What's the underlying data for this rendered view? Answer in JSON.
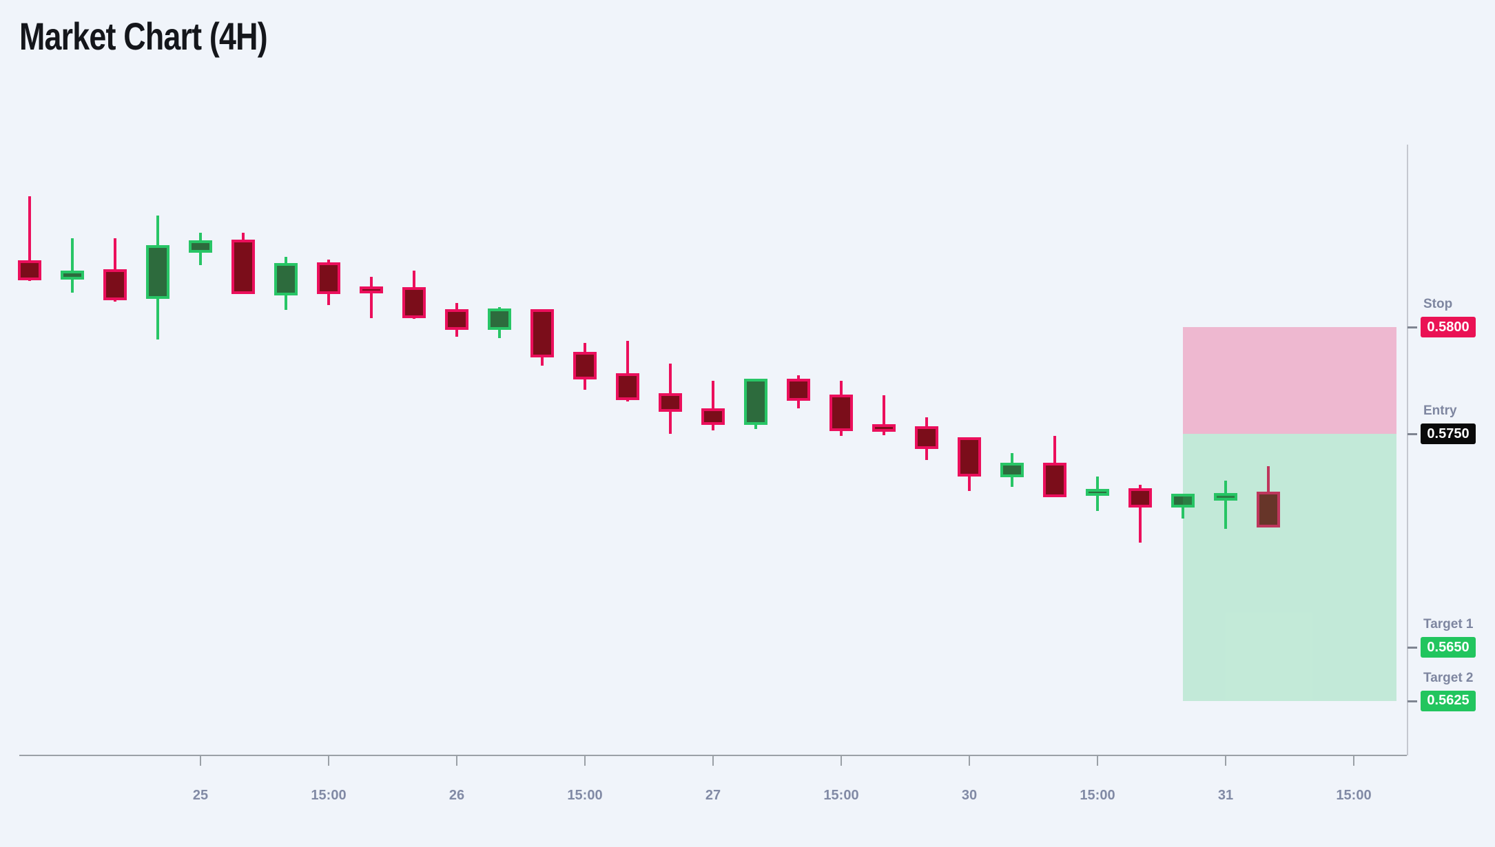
{
  "header": {
    "title": "Market Chart (4H)"
  },
  "chart_data": {
    "type": "candlestick",
    "title": "Market Chart (4H)",
    "timeframe": "4H",
    "legend_position": "none",
    "grid": false,
    "x_axis": {
      "labels": [
        {
          "slot": 4,
          "label": "25"
        },
        {
          "slot": 7,
          "label": "15:00"
        },
        {
          "slot": 10,
          "label": "26"
        },
        {
          "slot": 13,
          "label": "15:00"
        },
        {
          "slot": 16,
          "label": "27"
        },
        {
          "slot": 19,
          "label": "15:00"
        },
        {
          "slot": 22,
          "label": "30"
        },
        {
          "slot": 25,
          "label": "15:00"
        },
        {
          "slot": 28,
          "label": "31"
        },
        {
          "slot": 31,
          "label": "15:00"
        }
      ]
    },
    "y_axis": {
      "visible_range": [
        0.56,
        0.5885
      ],
      "labels_shown": [
        "0.5800",
        "0.5750",
        "0.5650",
        "0.5625"
      ]
    },
    "candles": [
      {
        "o": 0.583,
        "h": 0.58613,
        "l": 0.58216,
        "c": 0.58232
      },
      {
        "o": 0.58235,
        "h": 0.58416,
        "l": 0.58161,
        "c": 0.58252
      },
      {
        "o": 0.58258,
        "h": 0.58416,
        "l": 0.58119,
        "c": 0.58139
      },
      {
        "o": 0.58145,
        "h": 0.58523,
        "l": 0.57942,
        "c": 0.58371
      },
      {
        "o": 0.58361,
        "h": 0.58442,
        "l": 0.5829,
        "c": 0.58394
      },
      {
        "o": 0.58397,
        "h": 0.58442,
        "l": 0.58155,
        "c": 0.58168
      },
      {
        "o": 0.58161,
        "h": 0.58329,
        "l": 0.58081,
        "c": 0.58287
      },
      {
        "o": 0.5829,
        "h": 0.58316,
        "l": 0.58103,
        "c": 0.58168
      },
      {
        "o": 0.58177,
        "h": 0.58235,
        "l": 0.58042,
        "c": 0.58171
      },
      {
        "o": 0.58174,
        "h": 0.58265,
        "l": 0.58039,
        "c": 0.58055
      },
      {
        "o": 0.58071,
        "h": 0.58113,
        "l": 0.57955,
        "c": 0.58
      },
      {
        "o": 0.58,
        "h": 0.58094,
        "l": 0.57948,
        "c": 0.58074
      },
      {
        "o": 0.58071,
        "h": 0.58081,
        "l": 0.57819,
        "c": 0.57871
      },
      {
        "o": 0.57871,
        "h": 0.57926,
        "l": 0.57706,
        "c": 0.57768
      },
      {
        "o": 0.57771,
        "h": 0.57935,
        "l": 0.57652,
        "c": 0.57671
      },
      {
        "o": 0.57677,
        "h": 0.57829,
        "l": 0.575,
        "c": 0.57616
      },
      {
        "o": 0.57606,
        "h": 0.57748,
        "l": 0.57516,
        "c": 0.57555
      },
      {
        "o": 0.57555,
        "h": 0.57752,
        "l": 0.57523,
        "c": 0.57745
      },
      {
        "o": 0.57745,
        "h": 0.57774,
        "l": 0.57619,
        "c": 0.57668
      },
      {
        "o": 0.57671,
        "h": 0.57748,
        "l": 0.5749,
        "c": 0.57526
      },
      {
        "o": 0.57532,
        "h": 0.57681,
        "l": 0.57494,
        "c": 0.57523
      },
      {
        "o": 0.57523,
        "h": 0.57577,
        "l": 0.57377,
        "c": 0.57442
      },
      {
        "o": 0.57471,
        "h": 0.57481,
        "l": 0.57232,
        "c": 0.57313
      },
      {
        "o": 0.5731,
        "h": 0.5741,
        "l": 0.57252,
        "c": 0.57352
      },
      {
        "o": 0.57352,
        "h": 0.5749,
        "l": 0.57206,
        "c": 0.57216
      },
      {
        "o": 0.57223,
        "h": 0.573,
        "l": 0.57139,
        "c": 0.57229
      },
      {
        "o": 0.57232,
        "h": 0.57261,
        "l": 0.5699,
        "c": 0.57168
      },
      {
        "o": 0.57168,
        "h": 0.57206,
        "l": 0.57103,
        "c": 0.57206
      },
      {
        "o": 0.572,
        "h": 0.57281,
        "l": 0.57055,
        "c": 0.5721
      },
      {
        "o": 0.57216,
        "h": 0.57348,
        "l": 0.57074,
        "c": 0.57074
      }
    ],
    "levels": [
      {
        "name": "Stop",
        "value": "0.5800",
        "price": 0.58,
        "badge_color": "#ea1254"
      },
      {
        "name": "Entry",
        "value": "0.5750",
        "price": 0.575,
        "badge_color": "#0a0a0a"
      },
      {
        "name": "Target 1",
        "value": "0.5650",
        "price": 0.565,
        "badge_color": "#22c55e"
      },
      {
        "name": "Target 2",
        "value": "0.5625",
        "price": 0.5625,
        "badge_color": "#22c55e"
      }
    ],
    "zones": [
      {
        "kind": "risk",
        "top_price": 0.58,
        "bottom_price": 0.575,
        "color": "rgba(233,30,99,0.28)"
      },
      {
        "kind": "profit",
        "top_price": 0.575,
        "bottom_price": 0.5625,
        "color": "rgba(34,197,94,0.22)"
      }
    ],
    "colors": {
      "up_border": "#28c566",
      "up_fill": "#2d6b3d",
      "down_border": "#eb0f5c",
      "down_fill": "#7b0d1a",
      "background": "#f0f4fa",
      "time_axis_line": "#9aa0a6",
      "price_axis_line": "#c5c8d0",
      "axis_text": "#818aa5"
    }
  }
}
